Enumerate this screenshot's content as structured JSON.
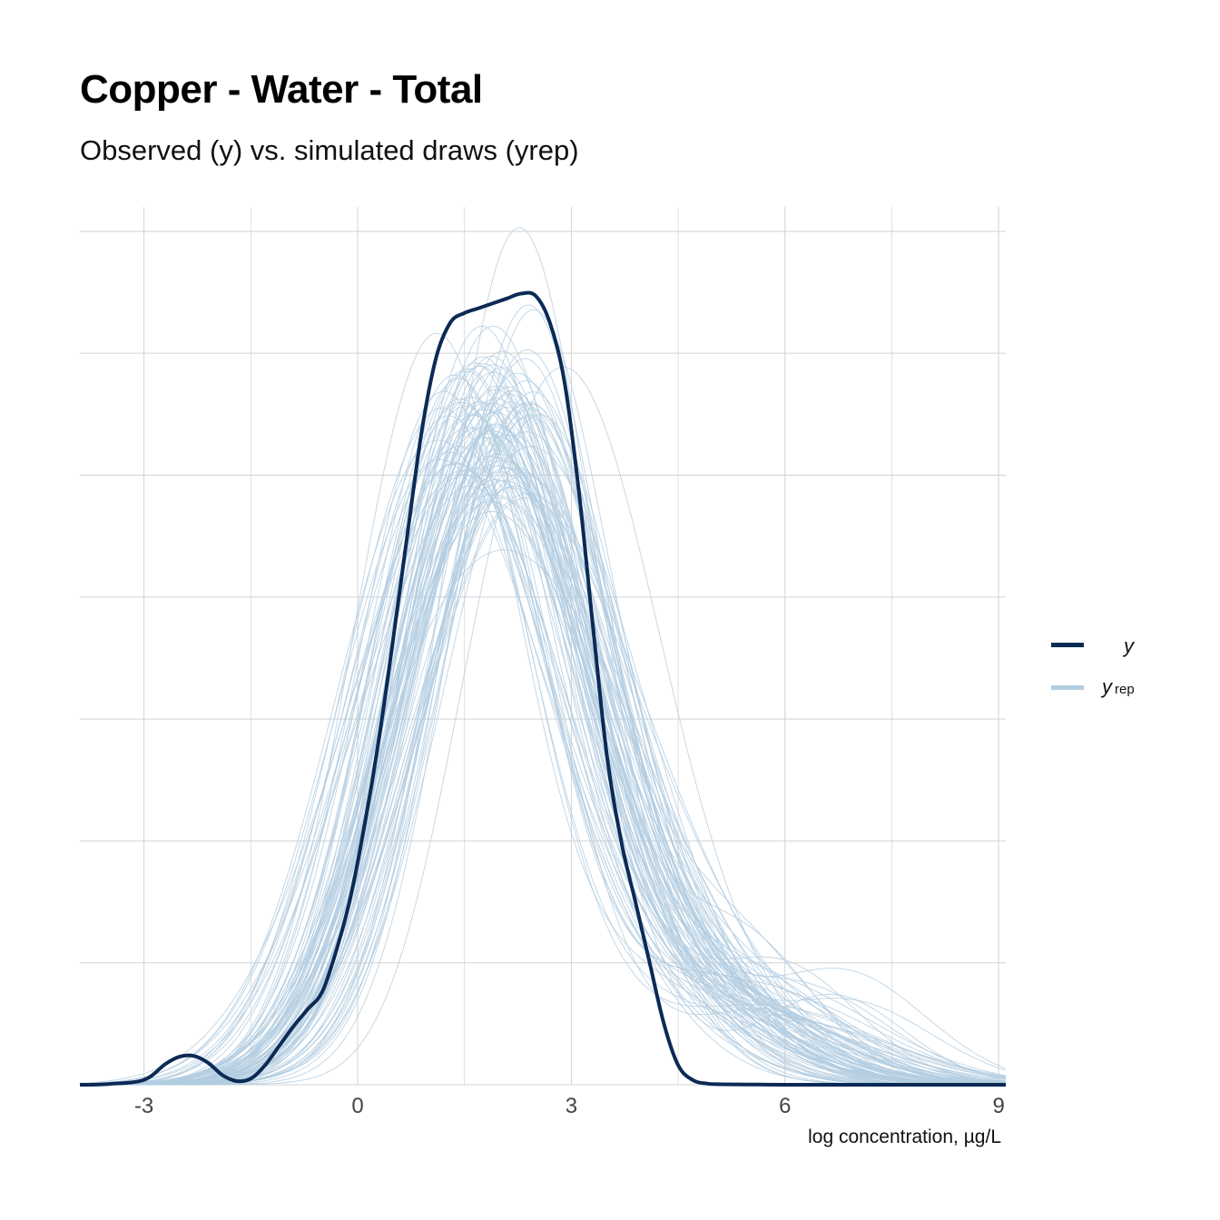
{
  "title": "Copper - Water - Total",
  "subtitle": "Observed (y) vs. simulated draws (yrep)",
  "legend": {
    "y_label": "y",
    "yrep_label": "y",
    "yrep_sub": "rep"
  },
  "colors": {
    "y": "#0b2a55",
    "yrep": "#b3cde0",
    "grid": "#d3d3d3"
  },
  "chart_data": {
    "type": "line",
    "title": "Copper - Water - Total",
    "subtitle": "Observed (y) vs. simulated draws (yrep)",
    "xlabel": "log concentration, µg/L",
    "ylabel": "",
    "xlim": [
      -3.9,
      9.1
    ],
    "ylim": [
      0,
      0.36
    ],
    "xticks": [
      -3,
      0,
      3,
      6,
      9
    ],
    "xtick_labels": [
      "-3",
      "0",
      "3",
      "6",
      "9"
    ],
    "yticks": [
      0,
      0.05,
      0.1,
      0.15,
      0.2,
      0.25,
      0.3,
      0.35
    ],
    "ytick_labels_shown": false,
    "grid": true,
    "legend_position": "right",
    "series": [
      {
        "name": "y",
        "x": [
          -3.9,
          -3.5,
          -3.0,
          -2.7,
          -2.5,
          -2.3,
          -2.1,
          -1.9,
          -1.7,
          -1.5,
          -1.3,
          -1.1,
          -0.9,
          -0.7,
          -0.5,
          -0.3,
          -0.1,
          0.1,
          0.3,
          0.5,
          0.7,
          0.9,
          1.1,
          1.3,
          1.5,
          1.7,
          1.9,
          2.1,
          2.3,
          2.5,
          2.7,
          2.9,
          3.1,
          3.3,
          3.5,
          3.7,
          3.9,
          4.1,
          4.3,
          4.5,
          4.7,
          4.9,
          5.1,
          5.5,
          6.0,
          7.0,
          8.0,
          9.1
        ],
        "y": [
          0.0,
          0.0003,
          0.002,
          0.0085,
          0.0115,
          0.0118,
          0.009,
          0.004,
          0.0015,
          0.0025,
          0.008,
          0.016,
          0.024,
          0.031,
          0.038,
          0.055,
          0.077,
          0.107,
          0.142,
          0.183,
          0.226,
          0.268,
          0.298,
          0.3125,
          0.3165,
          0.3185,
          0.3205,
          0.3225,
          0.3245,
          0.3235,
          0.3125,
          0.289,
          0.245,
          0.189,
          0.135,
          0.1,
          0.075,
          0.05,
          0.025,
          0.008,
          0.002,
          0.0005,
          0.0002,
          0.0001,
          0.0,
          0.0,
          0.0,
          0.0
        ]
      },
      {
        "name": "yrep",
        "draws": 100,
        "summary": {
          "peak_x_range": [
            1.0,
            2.7
          ],
          "peak_y_range": [
            0.186,
            0.36
          ],
          "right_tail_extent": 8.5
        }
      }
    ]
  }
}
